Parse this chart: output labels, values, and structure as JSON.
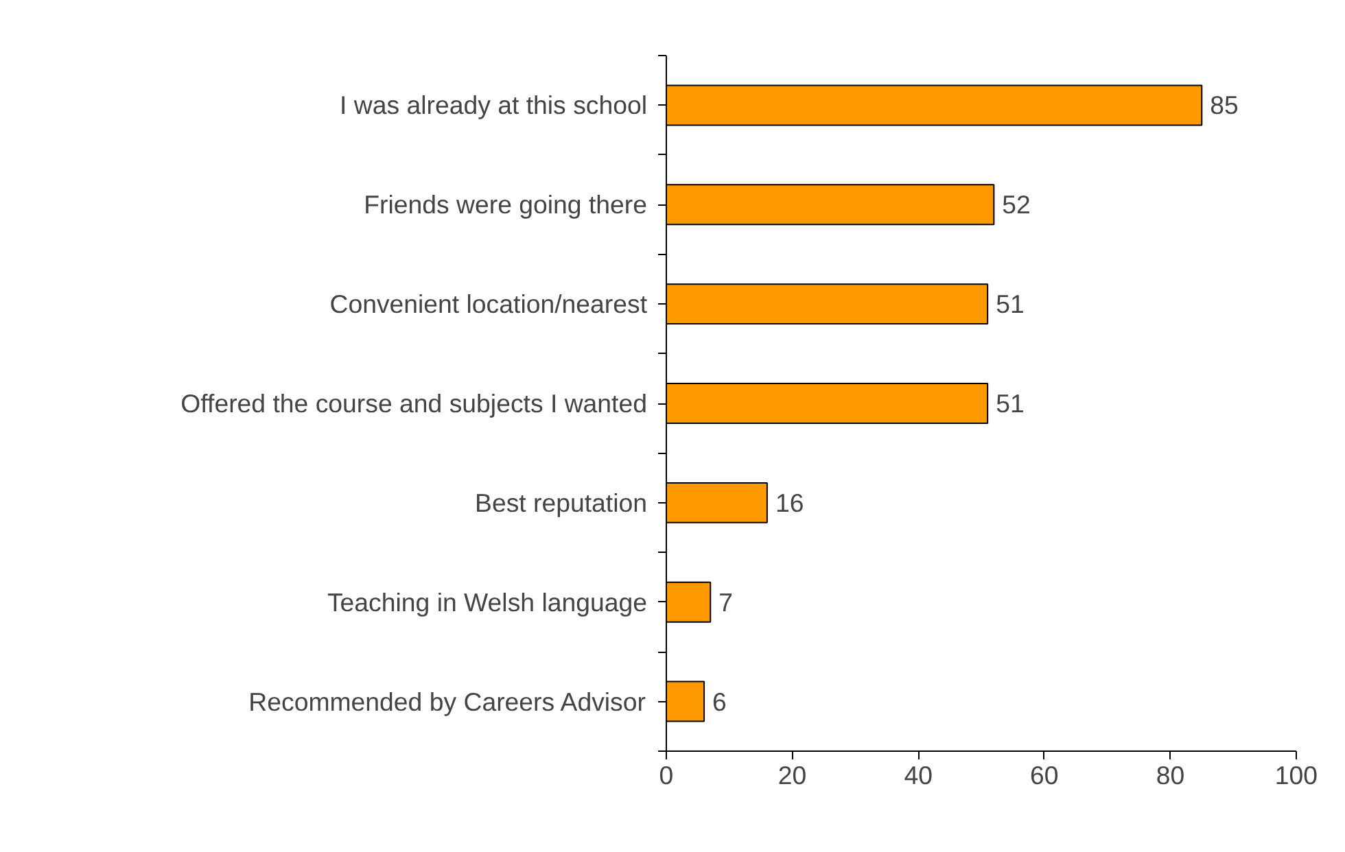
{
  "chart_data": {
    "type": "bar",
    "orientation": "horizontal",
    "categories": [
      "I was already at this school",
      "Friends were going there",
      "Convenient location/nearest",
      "Offered the course and subjects I wanted",
      "Best reputation",
      "Teaching in Welsh language",
      "Recommended by Careers Advisor"
    ],
    "values": [
      85,
      52,
      51,
      51,
      16,
      7,
      6
    ],
    "color": "#ff9900",
    "xlim": [
      0,
      100
    ],
    "xticks": [
      0,
      20,
      40,
      60,
      80,
      100
    ],
    "grid": false,
    "data_labels": true
  }
}
